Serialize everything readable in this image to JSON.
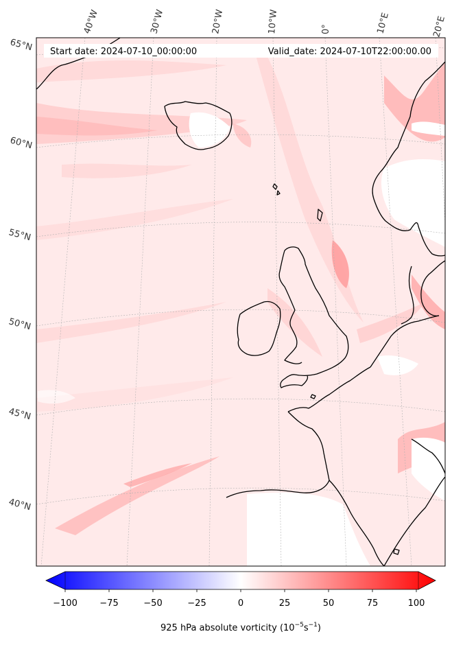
{
  "header": {
    "start_label": "Start date: 2024-07-10_00:00:00",
    "valid_label": "Valid_date: 2024-07-10T22:00:00.00"
  },
  "longitude_labels": [
    "40°W",
    "30°W",
    "20°W",
    "10°W",
    "0°",
    "10°E",
    "20°E"
  ],
  "latitude_labels": [
    "65°N",
    "60°N",
    "55°N",
    "50°N",
    "45°N",
    "40°N"
  ],
  "colorbar": {
    "ticks": [
      "−100",
      "−75",
      "−50",
      "−25",
      "0",
      "25",
      "50",
      "75",
      "100"
    ],
    "label_main": "925 hPa absolute vorticity (10",
    "label_exp1": "−5",
    "label_mid": "s",
    "label_exp2": "−1",
    "label_end": ")",
    "min_color": "#0000ff",
    "mid_color": "#ffffff",
    "max_color": "#ff0000"
  },
  "colors": {
    "field_base": "#ffe9e9",
    "land_outline": "#000000",
    "gridline": "#b0b0b0"
  }
}
